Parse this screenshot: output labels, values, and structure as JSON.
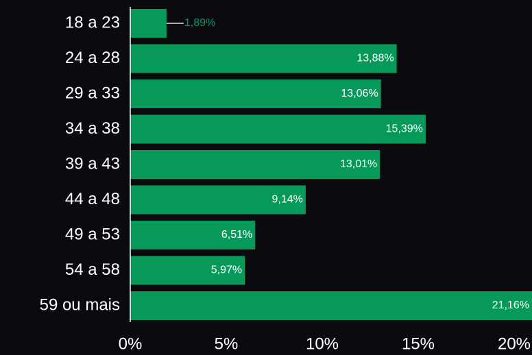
{
  "chart_data": {
    "type": "barh",
    "categories": [
      "18 a 23",
      "24 a 28",
      "29 a 33",
      "34 a 38",
      "39 a 43",
      "44 a 48",
      "49 a 53",
      "54 a 58",
      "59 ou mais"
    ],
    "values": [
      1.89,
      13.88,
      13.06,
      15.39,
      13.01,
      9.14,
      6.51,
      5.97,
      21.16
    ],
    "value_labels": [
      "1,89%",
      "13,88%",
      "13,06%",
      "15,39%",
      "13,01%",
      "9,14%",
      "6,51%",
      "5,97%",
      "21,16%"
    ],
    "color": "#07995a",
    "xlim": [
      0,
      20
    ],
    "xticks": [
      {
        "value": 0,
        "label": "0%"
      },
      {
        "value": 5,
        "label": "5%"
      },
      {
        "value": 10,
        "label": "10%"
      },
      {
        "value": 15,
        "label": "15%"
      },
      {
        "value": 20,
        "label": "20%"
      }
    ]
  }
}
